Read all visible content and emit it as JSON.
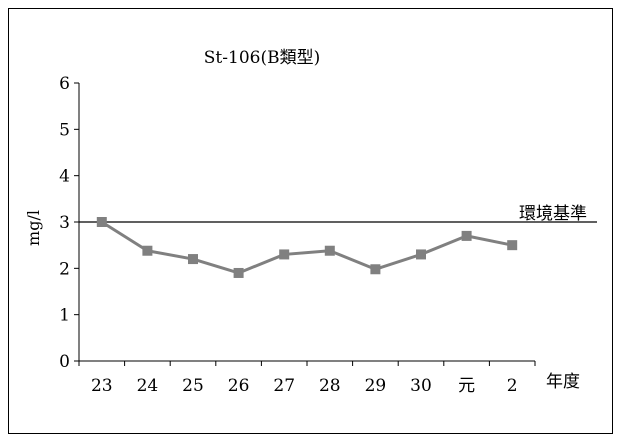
{
  "chart_data": {
    "type": "line",
    "title": "St-106(B類型)",
    "xlabel": "年度",
    "ylabel": "mg/l",
    "categories": [
      "23",
      "24",
      "25",
      "26",
      "27",
      "28",
      "29",
      "30",
      "元",
      "2"
    ],
    "series": [
      {
        "values": [
          3.0,
          2.38,
          2.2,
          1.9,
          2.3,
          2.38,
          1.98,
          2.3,
          2.7,
          2.5
        ],
        "color": "#808080"
      }
    ],
    "ylim": [
      0,
      6
    ],
    "yticks": [
      "0",
      "1",
      "2",
      "3",
      "4",
      "5",
      "6"
    ],
    "grid": false,
    "reference_line": {
      "label": "環境基準",
      "value": 3,
      "color": "#000000"
    }
  }
}
